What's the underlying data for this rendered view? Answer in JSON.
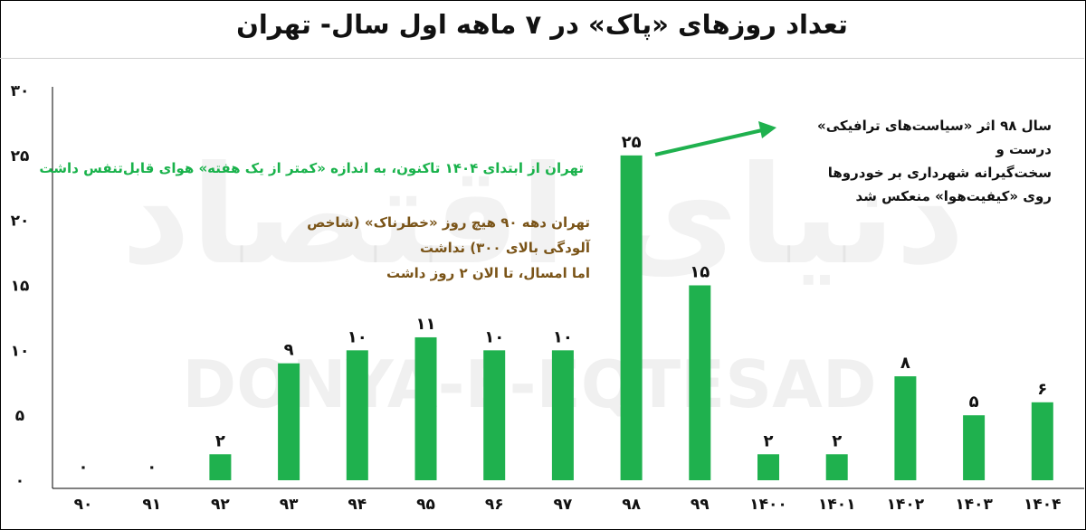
{
  "header": {
    "title": "تعداد روزهای «پاک» در ۷ ماهه اول سال- تهران"
  },
  "annotations": {
    "green_note": "تهران از ابتدای ۱۴۰۴ تاکنون، به اندازه «کمتر از یک هفته» هوای قابل‌تنفس داشت",
    "brown_note_line1": "تهران دهه ۹۰ هیچ روز «خطرناک» (شاخص آلودگی بالای ۳۰۰) نداشت",
    "brown_note_line2": "اما امسال، تا الان ۲ روز داشت",
    "black_note_line1": "سال ۹۸ اثر «سیاست‌های ترافیکی» درست و",
    "black_note_line2": "سخت‌گیرانه شهرداری بر خودروها",
    "black_note_line3": "روی «کیفیت‌هوا» منعکس شد"
  },
  "watermark": {
    "text": "DONYA-E-EQTESAD",
    "logo_text": "دنیای اقتصاد"
  },
  "colors": {
    "bar": "#1fb14e",
    "green_note": "#19b24b",
    "brown_note": "#7a5418",
    "arrow": "#1fb14e"
  },
  "chart_data": {
    "type": "bar",
    "categories": [
      "۹۰",
      "۹۱",
      "۹۲",
      "۹۳",
      "۹۴",
      "۹۵",
      "۹۶",
      "۹۷",
      "۹۸",
      "۹۹",
      "۱۴۰۰",
      "۱۴۰۱",
      "۱۴۰۲",
      "۱۴۰۳",
      "۱۴۰۴"
    ],
    "values": [
      0,
      0,
      2,
      9,
      10,
      11,
      10,
      10,
      25,
      15,
      2,
      2,
      8,
      5,
      6
    ],
    "value_labels": [
      "۰",
      "۰",
      "۲",
      "۹",
      "۱۰",
      "۱۱",
      "۱۰",
      "۱۰",
      "۲۵",
      "۱۵",
      "۲",
      "۲",
      "۸",
      "۵",
      "۶"
    ],
    "y_ticks": [
      0,
      5,
      10,
      15,
      20,
      25,
      30
    ],
    "y_tick_labels": [
      "۰",
      "۵",
      "۱۰",
      "۱۵",
      "۲۰",
      "۲۵",
      "۳۰"
    ],
    "ylim": [
      0,
      30
    ],
    "title": "تعداد روزهای «پاک» در ۷ ماهه اول سال- تهران",
    "xlabel": "",
    "ylabel": "",
    "grid": false
  }
}
